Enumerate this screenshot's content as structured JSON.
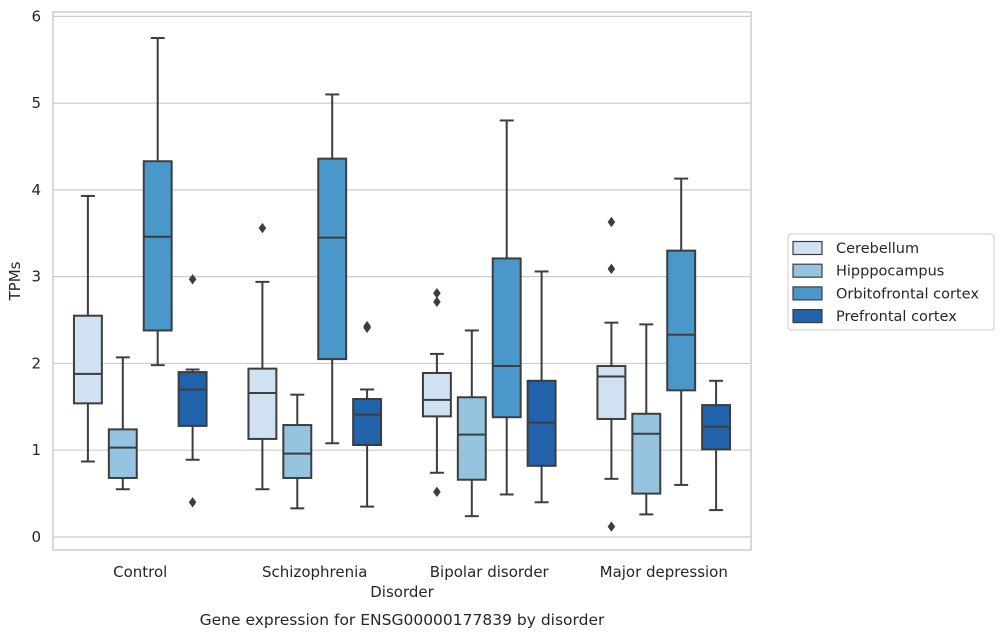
{
  "chart_data": {
    "type": "box",
    "caption": "Gene expression for ENSG00000177839 by disorder",
    "xlabel": "Disorder",
    "ylabel": "TPMs",
    "ylim": [
      -0.15,
      6.05
    ],
    "yticks": [
      0,
      1,
      2,
      3,
      4,
      5,
      6
    ],
    "grid": "horizontal",
    "legend_position": "right",
    "categories": [
      "Control",
      "Schizophrenia",
      "Bipolar disorder",
      "Major depression"
    ],
    "series": [
      {
        "name": "Cerebellum",
        "color": "#d0e1f2",
        "boxes": [
          {
            "whisker_low": 0.87,
            "q1": 1.54,
            "median": 1.88,
            "q3": 2.55,
            "whisker_high": 3.93,
            "outliers": []
          },
          {
            "whisker_low": 0.55,
            "q1": 1.13,
            "median": 1.66,
            "q3": 1.94,
            "whisker_high": 2.94,
            "outliers": [
              3.56
            ]
          },
          {
            "whisker_low": 0.74,
            "q1": 1.39,
            "median": 1.58,
            "q3": 1.89,
            "whisker_high": 2.11,
            "outliers": [
              2.81,
              2.71,
              0.52
            ]
          },
          {
            "whisker_low": 0.67,
            "q1": 1.36,
            "median": 1.85,
            "q3": 1.97,
            "whisker_high": 2.47,
            "outliers": [
              3.63,
              3.09,
              0.12
            ]
          }
        ]
      },
      {
        "name": "Hipppocampus",
        "color": "#94c4df",
        "boxes": [
          {
            "whisker_low": 0.55,
            "q1": 0.68,
            "median": 1.03,
            "q3": 1.24,
            "whisker_high": 2.07,
            "outliers": []
          },
          {
            "whisker_low": 0.33,
            "q1": 0.68,
            "median": 0.96,
            "q3": 1.29,
            "whisker_high": 1.64,
            "outliers": []
          },
          {
            "whisker_low": 0.24,
            "q1": 0.66,
            "median": 1.18,
            "q3": 1.61,
            "whisker_high": 2.38,
            "outliers": []
          },
          {
            "whisker_low": 0.26,
            "q1": 0.5,
            "median": 1.19,
            "q3": 1.42,
            "whisker_high": 2.45,
            "outliers": []
          }
        ]
      },
      {
        "name": "Orbitofrontal cortex",
        "color": "#4a98c9",
        "boxes": [
          {
            "whisker_low": 1.98,
            "q1": 2.38,
            "median": 3.46,
            "q3": 4.33,
            "whisker_high": 5.75,
            "outliers": []
          },
          {
            "whisker_low": 1.08,
            "q1": 2.05,
            "median": 3.45,
            "q3": 4.36,
            "whisker_high": 5.1,
            "outliers": []
          },
          {
            "whisker_low": 0.49,
            "q1": 1.38,
            "median": 1.97,
            "q3": 3.21,
            "whisker_high": 4.8,
            "outliers": []
          },
          {
            "whisker_low": 0.6,
            "q1": 1.69,
            "median": 2.33,
            "q3": 3.3,
            "whisker_high": 4.13,
            "outliers": []
          }
        ]
      },
      {
        "name": "Prefrontal cortex",
        "color": "#2163aa",
        "boxes": [
          {
            "whisker_low": 0.89,
            "q1": 1.28,
            "median": 1.7,
            "q3": 1.9,
            "whisker_high": 1.93,
            "outliers": [
              2.97,
              0.4
            ]
          },
          {
            "whisker_low": 0.35,
            "q1": 1.06,
            "median": 1.41,
            "q3": 1.59,
            "whisker_high": 1.7,
            "outliers": [
              2.43,
              2.41
            ]
          },
          {
            "whisker_low": 0.4,
            "q1": 0.82,
            "median": 1.32,
            "q3": 1.8,
            "whisker_high": 3.06,
            "outliers": []
          },
          {
            "whisker_low": 0.31,
            "q1": 1.01,
            "median": 1.27,
            "q3": 1.52,
            "whisker_high": 1.8,
            "outliers": []
          }
        ]
      }
    ]
  }
}
